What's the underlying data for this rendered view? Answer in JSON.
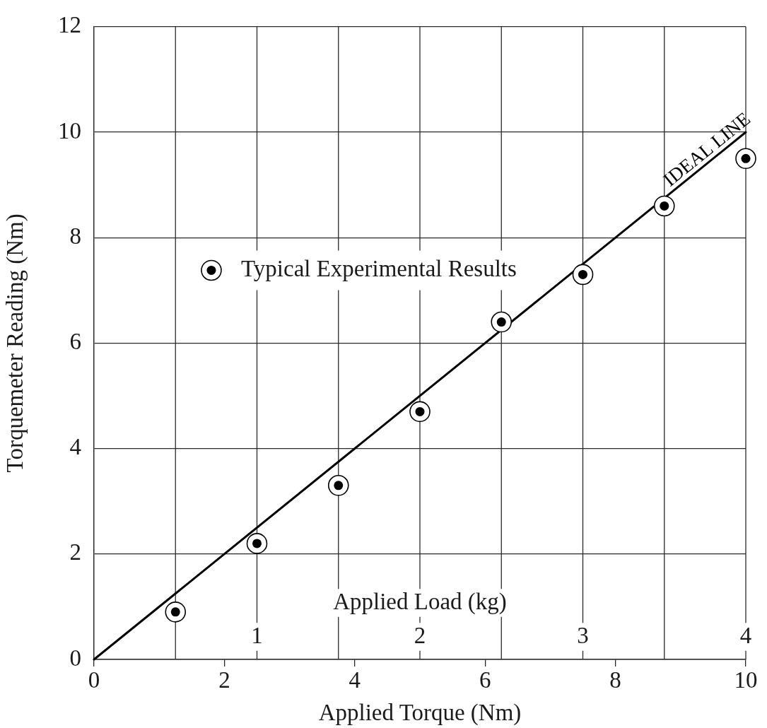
{
  "chart_data": {
    "type": "scatter",
    "xlabel": "Applied Torque (Nm)",
    "ylabel": "Torquemeter Reading (Nm)",
    "x2label": "Applied Load (kg)",
    "series": [
      {
        "name": "Typical Experimental Results",
        "type": "scatter",
        "marker": "circle",
        "color": "#000000",
        "x": [
          1.25,
          2.5,
          3.75,
          5,
          6.25,
          7.5,
          8.75,
          10
        ],
        "values": [
          0.9,
          2.2,
          3.3,
          4.7,
          6.4,
          7.3,
          8.6,
          9.5
        ]
      },
      {
        "name": "IDEAL LINE",
        "type": "line",
        "marker": "none",
        "color": "#000000",
        "x": [
          0,
          10
        ],
        "values": [
          0,
          10
        ]
      }
    ],
    "xlim": [
      0,
      10
    ],
    "xticks": [
      0,
      2,
      4,
      6,
      8,
      10
    ],
    "ylim": [
      0,
      12
    ],
    "yticks": [
      0,
      2,
      4,
      6,
      8,
      10,
      12
    ],
    "x2lim": [
      0,
      4
    ],
    "x2ticks": [
      {
        "value": 0.5,
        "label": null
      },
      1,
      {
        "value": 1.5,
        "label": null
      },
      2,
      {
        "value": 2.5,
        "label": null
      },
      3,
      {
        "value": 3.5,
        "label": null
      },
      4
    ],
    "grid": true,
    "legend": "top left"
  }
}
